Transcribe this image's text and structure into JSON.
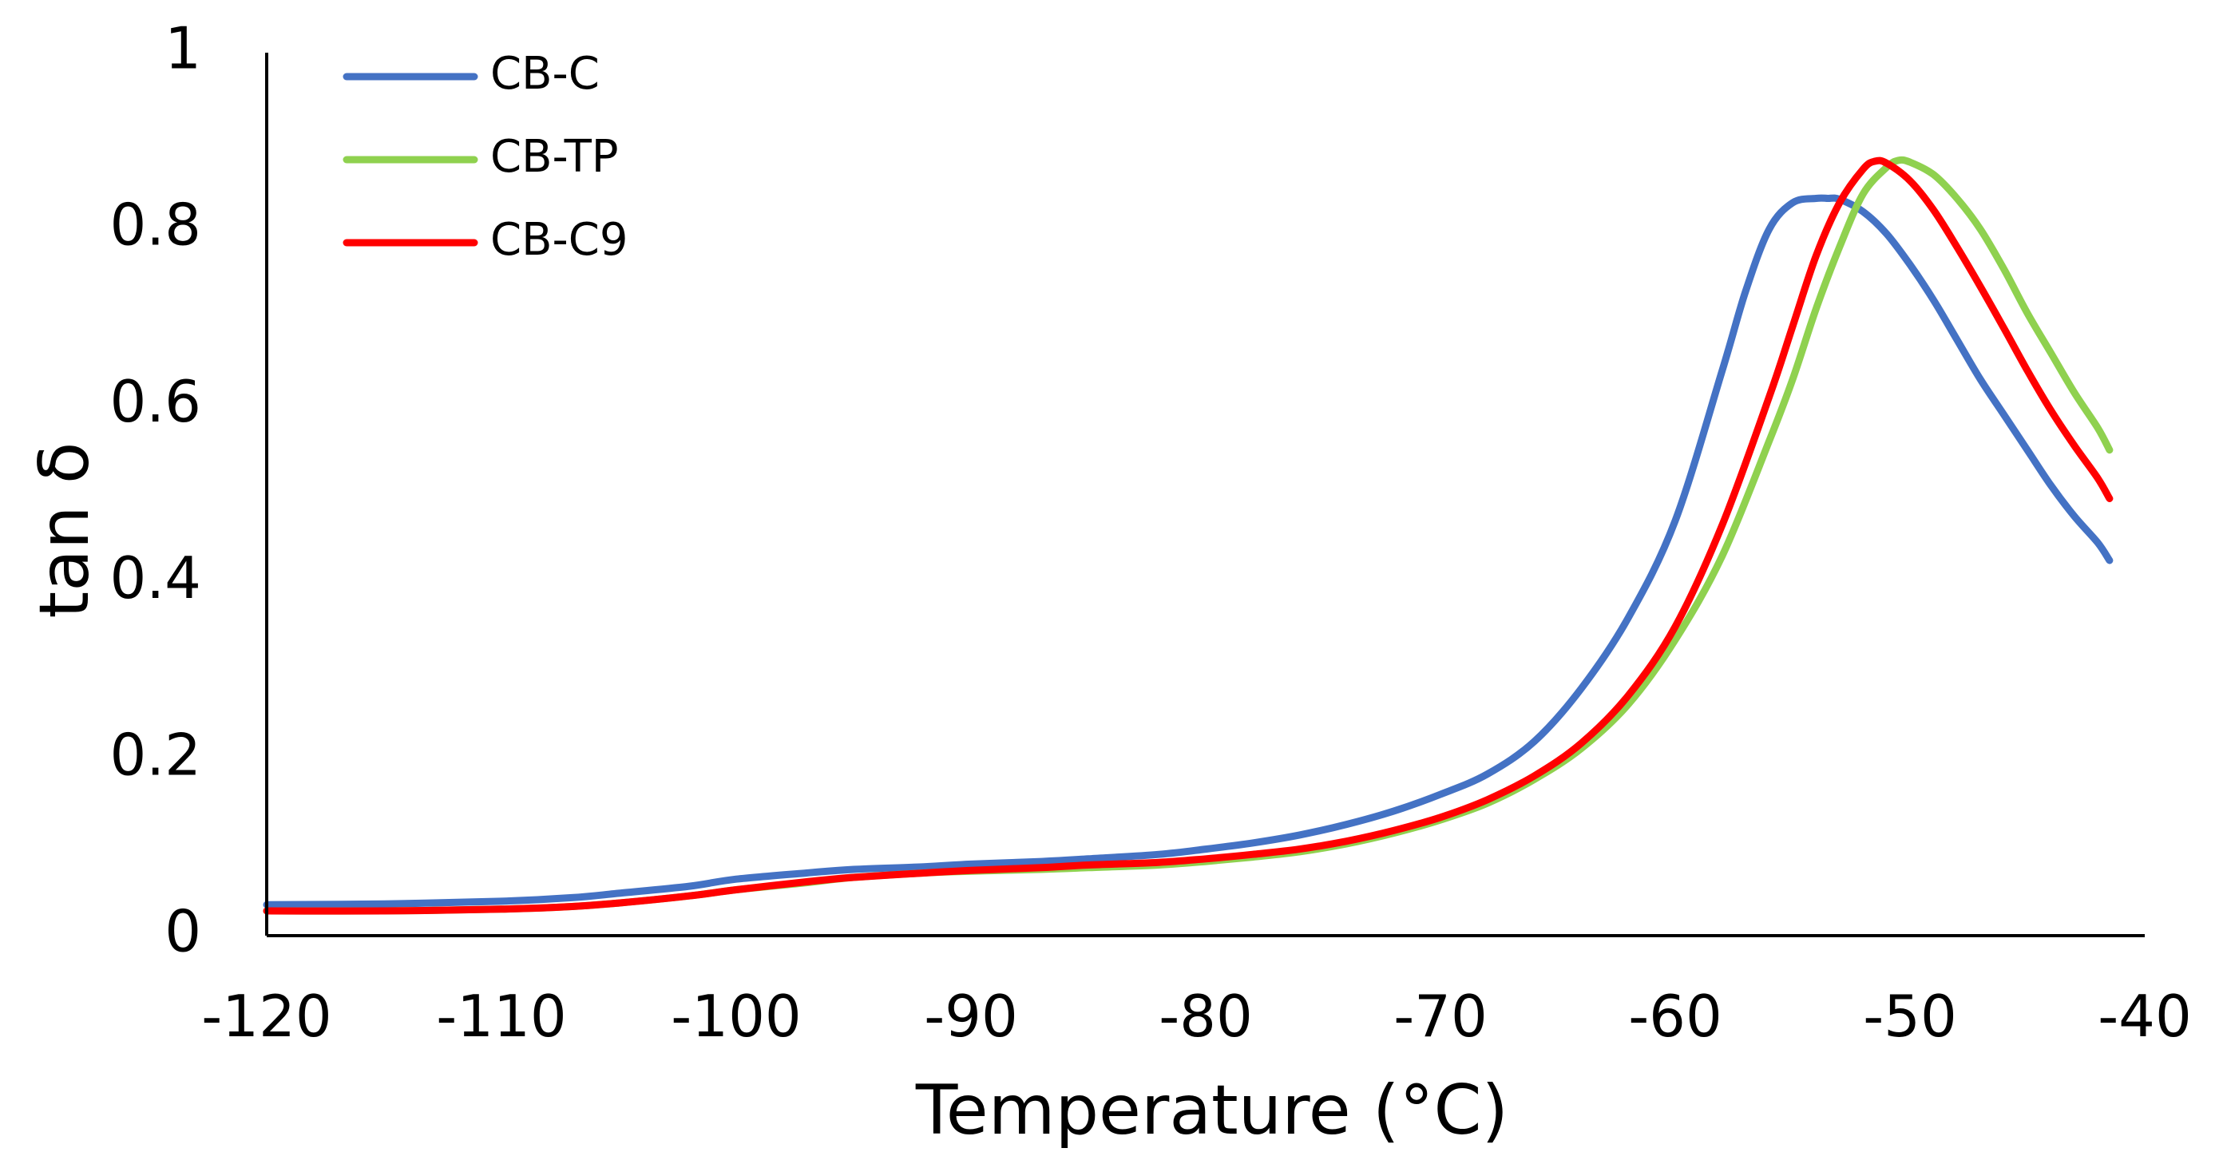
{
  "chart_data": {
    "type": "line",
    "title": "",
    "xlabel": "Temperature (°C)",
    "ylabel": "tan δ",
    "xlim": [
      -120,
      -40
    ],
    "ylim": [
      0,
      1
    ],
    "x_ticks": [
      -120,
      -110,
      -100,
      -90,
      -80,
      -70,
      -60,
      -50,
      -40
    ],
    "y_ticks": [
      0,
      0.2,
      0.4,
      0.6,
      0.8,
      1
    ],
    "x_tick_labels": [
      "-120",
      "-110",
      "-100",
      "-90",
      "-80",
      "-70",
      "-60",
      "-50",
      "-40"
    ],
    "y_tick_labels": [
      "0",
      "0.2",
      "0.4",
      "0.6",
      "0.8",
      "1"
    ],
    "grid": false,
    "legend_position": "top-left",
    "series": [
      {
        "name": "CB-C",
        "color": "#4472C4",
        "x": [
          -120,
          -115,
          -110,
          -107,
          -105,
          -102,
          -100,
          -97,
          -95,
          -92,
          -90,
          -87,
          -85,
          -82,
          -80,
          -78,
          -76,
          -74,
          -72,
          -70,
          -68,
          -66,
          -64,
          -62,
          -60,
          -58,
          -57,
          -56,
          -55,
          -54,
          -53.5,
          -53,
          -52,
          -51,
          -50,
          -49,
          -48,
          -47,
          -46,
          -45,
          -44,
          -43,
          -42,
          -41.5
        ],
        "y": [
          0.035,
          0.036,
          0.039,
          0.043,
          0.048,
          0.056,
          0.064,
          0.071,
          0.075,
          0.078,
          0.081,
          0.084,
          0.087,
          0.092,
          0.098,
          0.105,
          0.114,
          0.126,
          0.141,
          0.16,
          0.183,
          0.22,
          0.28,
          0.36,
          0.47,
          0.64,
          0.73,
          0.8,
          0.83,
          0.835,
          0.835,
          0.834,
          0.82,
          0.795,
          0.76,
          0.72,
          0.675,
          0.63,
          0.59,
          0.55,
          0.51,
          0.475,
          0.445,
          0.425
        ]
      },
      {
        "name": "CB-TP",
        "color": "#8FD14F",
        "x": [
          -120,
          -115,
          -110,
          -107,
          -105,
          -102,
          -100,
          -97,
          -95,
          -92,
          -90,
          -87,
          -85,
          -82,
          -80,
          -78,
          -76,
          -74,
          -72,
          -70,
          -68,
          -66,
          -64,
          -62,
          -60,
          -58,
          -56,
          -55,
          -54,
          -53,
          -52,
          -51,
          -50.5,
          -50,
          -49,
          -48,
          -47,
          -46,
          -45,
          -44,
          -43,
          -42,
          -41.5
        ],
        "y": [
          0.028,
          0.028,
          0.03,
          0.033,
          0.037,
          0.045,
          0.052,
          0.06,
          0.066,
          0.071,
          0.073,
          0.075,
          0.077,
          0.08,
          0.084,
          0.089,
          0.095,
          0.104,
          0.116,
          0.131,
          0.15,
          0.177,
          0.212,
          0.262,
          0.335,
          0.43,
          0.56,
          0.63,
          0.71,
          0.78,
          0.84,
          0.87,
          0.878,
          0.876,
          0.862,
          0.835,
          0.8,
          0.755,
          0.705,
          0.66,
          0.615,
          0.575,
          0.55
        ]
      },
      {
        "name": "CB-C9",
        "color": "#FF0000",
        "x": [
          -120,
          -115,
          -110,
          -107,
          -105,
          -102,
          -100,
          -97,
          -95,
          -92,
          -90,
          -87,
          -85,
          -82,
          -80,
          -78,
          -76,
          -74,
          -72,
          -70,
          -68,
          -66,
          -64,
          -62,
          -60,
          -58,
          -56,
          -55,
          -54,
          -53,
          -52,
          -51.5,
          -51,
          -50,
          -49,
          -48,
          -47,
          -46,
          -45,
          -44,
          -43,
          -42,
          -41.5
        ],
        "y": [
          0.028,
          0.028,
          0.03,
          0.033,
          0.037,
          0.045,
          0.052,
          0.061,
          0.066,
          0.071,
          0.074,
          0.077,
          0.08,
          0.083,
          0.087,
          0.092,
          0.098,
          0.107,
          0.119,
          0.134,
          0.154,
          0.181,
          0.218,
          0.272,
          0.35,
          0.465,
          0.61,
          0.69,
          0.77,
          0.83,
          0.868,
          0.877,
          0.875,
          0.855,
          0.822,
          0.78,
          0.735,
          0.688,
          0.64,
          0.595,
          0.555,
          0.518,
          0.495
        ]
      }
    ]
  }
}
